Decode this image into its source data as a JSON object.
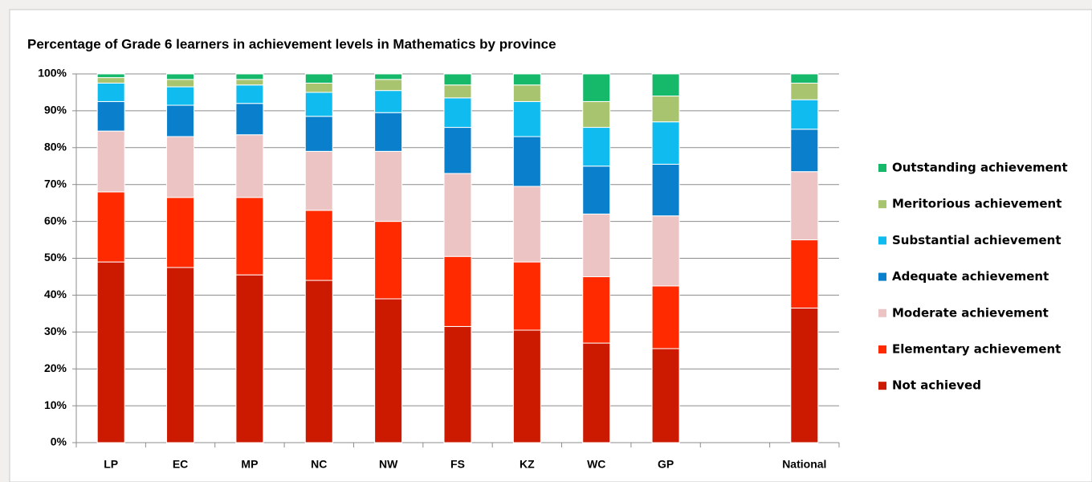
{
  "chart_data": {
    "type": "stacked_bar",
    "title": "Percentage of Grade 6 learners in achievement levels in Mathematics by province",
    "categories": [
      "LP",
      "EC",
      "MP",
      "NC",
      "NW",
      "FS",
      "KZ",
      "WC",
      "GP",
      null,
      "National"
    ],
    "series": [
      {
        "name": "Not achieved",
        "color": "#cc1a00",
        "values": [
          49,
          47.5,
          45.5,
          44,
          39,
          31.5,
          30.5,
          27,
          25.5,
          null,
          36.5
        ]
      },
      {
        "name": "Elementary achievement",
        "color": "#ff2a00",
        "values": [
          19,
          19,
          21,
          19,
          21,
          19,
          18.5,
          18,
          17,
          null,
          18.5
        ]
      },
      {
        "name": "Moderate achievement",
        "color": "#ecc4c4",
        "values": [
          16.5,
          16.5,
          17,
          16,
          19,
          22.5,
          20.5,
          17,
          19,
          null,
          18.5
        ]
      },
      {
        "name": "Adequate achievement",
        "color": "#0a80cc",
        "values": [
          8,
          8.5,
          8.5,
          9.5,
          10.5,
          12.5,
          13.5,
          13,
          14,
          null,
          11.5
        ]
      },
      {
        "name": "Substantial achievement",
        "color": "#10bcef",
        "values": [
          5,
          5,
          5,
          6.5,
          6,
          8,
          9.5,
          10.5,
          11.5,
          null,
          8
        ]
      },
      {
        "name": "Meritorious achievement",
        "color": "#a8c46e",
        "values": [
          1.5,
          2,
          1.5,
          2.5,
          3,
          3.5,
          4.5,
          7,
          7,
          null,
          4.5
        ]
      },
      {
        "name": "Outstanding achievement",
        "color": "#16b86a",
        "values": [
          1,
          1.5,
          1.5,
          2.5,
          1.5,
          3,
          3,
          7.5,
          6,
          null,
          2.5
        ]
      }
    ],
    "ylim": [
      0,
      100
    ],
    "yticks": [
      {
        "value": 0,
        "label": "0%"
      },
      {
        "value": 10,
        "label": "10%"
      },
      {
        "value": 20,
        "label": "20%"
      },
      {
        "value": 30,
        "label": "30%"
      },
      {
        "value": 40,
        "label": "40%"
      },
      {
        "value": 50,
        "label": "50%"
      },
      {
        "value": 60,
        "label": "60%"
      },
      {
        "value": 70,
        "label": "70%"
      },
      {
        "value": 80,
        "label": "80%"
      },
      {
        "value": 90,
        "label": "90%"
      },
      {
        "value": 100,
        "label": "100%"
      }
    ],
    "grid": true,
    "legend": "right"
  }
}
